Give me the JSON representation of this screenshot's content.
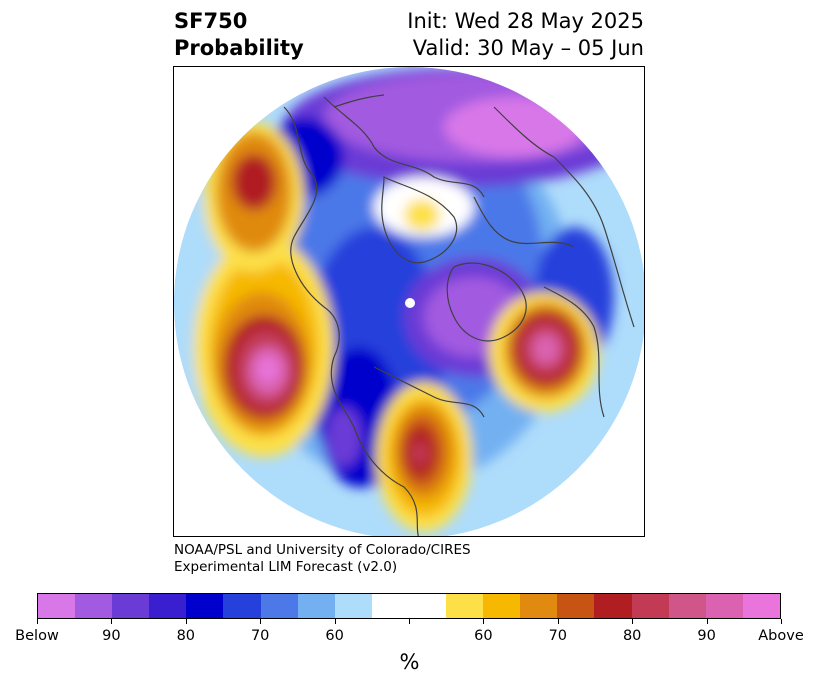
{
  "title": {
    "left_line1": "SF750",
    "left_line2": "Probability",
    "right_line1": "Init: Wed 28 May 2025",
    "right_line2": "Valid: 30 May – 05 Jun"
  },
  "credit": {
    "line1": "NOAA/PSL and University of Colorado/CIRES",
    "line2": "Experimental LIM Forecast (v2.0)"
  },
  "colorbar": {
    "colors": [
      "#d877e8",
      "#a25ae0",
      "#6b3bd6",
      "#3a1fd0",
      "#0000cc",
      "#2640db",
      "#4c78e8",
      "#72b0f2",
      "#aedcfb",
      "#ffffff",
      "#ffffff",
      "#fde048",
      "#f6b800",
      "#e08a10",
      "#c85414",
      "#b01e22",
      "#c33a55",
      "#d0568a",
      "#da62b0",
      "#e874dc"
    ],
    "labels": [
      "Below",
      "90",
      "80",
      "70",
      "60",
      "",
      "60",
      "70",
      "80",
      "90",
      "Above"
    ],
    "units": "%"
  },
  "map": {
    "projection": "north-polar-stereographic",
    "anomaly_patterns": [
      {
        "name": "north-pacific-positive",
        "color": "#c33a55"
      },
      {
        "name": "gulf-of-alaska-positive",
        "color": "#b01e22"
      },
      {
        "name": "north-america-negative",
        "color": "#2640db"
      },
      {
        "name": "eastern-us-positive",
        "color": "#b01e22"
      },
      {
        "name": "north-atlantic-positive",
        "color": "#d0568a"
      },
      {
        "name": "arctic-eurasia-negative",
        "color": "#a25ae0"
      }
    ]
  }
}
